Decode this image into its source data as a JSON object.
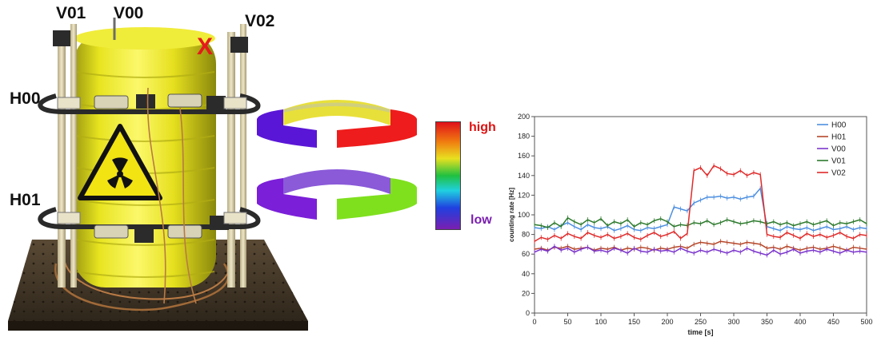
{
  "detector": {
    "labels": {
      "v01": "V01",
      "v00": "V00",
      "v02": "V02",
      "h00": "H00",
      "h01": "H01",
      "marker": "X"
    }
  },
  "colorbar": {
    "high": "high",
    "low": "low",
    "high_color": "#e01010",
    "low_color": "#7a1fb0"
  },
  "rings": {
    "upper": {
      "left": "#5a16d6",
      "back": "#e8e03a",
      "right": "#ee1c1c"
    },
    "lower": {
      "left": "#7b1fd8",
      "back": "#8a5ad8",
      "right": "#7fe01e"
    }
  },
  "chart_data": {
    "type": "line",
    "xlabel": "time [s]",
    "ylabel": "counting rate [Hz]",
    "xlim": [
      0,
      500
    ],
    "ylim": [
      0,
      200
    ],
    "xticks": [
      0,
      50,
      100,
      150,
      200,
      250,
      300,
      350,
      400,
      450,
      500
    ],
    "yticks": [
      0,
      20,
      40,
      60,
      80,
      100,
      120,
      140,
      160,
      180,
      200
    ],
    "grid": false,
    "legend_position": "top-right",
    "x": [
      0,
      10,
      20,
      30,
      40,
      50,
      60,
      70,
      80,
      90,
      100,
      110,
      120,
      130,
      140,
      150,
      160,
      170,
      180,
      190,
      200,
      210,
      220,
      230,
      240,
      250,
      260,
      270,
      280,
      290,
      300,
      310,
      320,
      330,
      340,
      350,
      360,
      370,
      380,
      390,
      400,
      410,
      420,
      430,
      440,
      450,
      460,
      470,
      480,
      490,
      500
    ],
    "series": [
      {
        "name": "H00",
        "color": "#4d8fe0",
        "values": [
          87,
          86,
          88,
          85,
          89,
          92,
          88,
          85,
          90,
          87,
          86,
          88,
          84,
          86,
          89,
          85,
          84,
          87,
          86,
          88,
          90,
          108,
          106,
          104,
          112,
          115,
          118,
          118,
          119,
          117,
          118,
          116,
          118,
          119,
          127,
          88,
          86,
          84,
          88,
          86,
          85,
          87,
          84,
          86,
          88,
          85,
          86,
          88,
          85,
          87,
          86
        ]
      },
      {
        "name": "H01",
        "color": "#b5472a",
        "values": [
          65,
          66,
          64,
          67,
          66,
          68,
          65,
          66,
          67,
          64,
          66,
          65,
          67,
          64,
          66,
          65,
          67,
          66,
          64,
          66,
          65,
          67,
          68,
          66,
          70,
          72,
          71,
          70,
          73,
          72,
          71,
          70,
          72,
          71,
          70,
          66,
          67,
          65,
          68,
          66,
          64,
          66,
          67,
          65,
          66,
          68,
          66,
          64,
          67,
          66,
          65
        ]
      },
      {
        "name": "V00",
        "color": "#7b35cc",
        "values": [
          62,
          65,
          63,
          68,
          64,
          66,
          62,
          65,
          67,
          63,
          64,
          62,
          66,
          64,
          61,
          66,
          63,
          62,
          65,
          63,
          64,
          62,
          66,
          63,
          61,
          64,
          62,
          65,
          63,
          61,
          64,
          62,
          66,
          63,
          61,
          59,
          64,
          60,
          62,
          65,
          61,
          63,
          64,
          62,
          65,
          63,
          61,
          64,
          62,
          63,
          62
        ]
      },
      {
        "name": "V01",
        "color": "#2d7a2d",
        "values": [
          90,
          89,
          87,
          92,
          88,
          97,
          93,
          90,
          95,
          92,
          96,
          89,
          93,
          91,
          95,
          88,
          92,
          90,
          94,
          96,
          93,
          88,
          90,
          89,
          92,
          91,
          94,
          90,
          92,
          95,
          93,
          91,
          92,
          94,
          93,
          91,
          93,
          90,
          92,
          89,
          91,
          93,
          90,
          92,
          94,
          89,
          92,
          91,
          93,
          95,
          91
        ]
      },
      {
        "name": "V02",
        "color": "#e02a2a",
        "values": [
          73,
          77,
          75,
          79,
          76,
          81,
          78,
          76,
          82,
          79,
          77,
          80,
          76,
          78,
          81,
          77,
          75,
          79,
          82,
          78,
          80,
          83,
          76,
          81,
          145,
          148,
          140,
          150,
          147,
          142,
          141,
          145,
          140,
          143,
          141,
          80,
          78,
          77,
          82,
          79,
          76,
          81,
          78,
          80,
          77,
          79,
          82,
          78,
          76,
          80,
          79
        ]
      }
    ]
  }
}
